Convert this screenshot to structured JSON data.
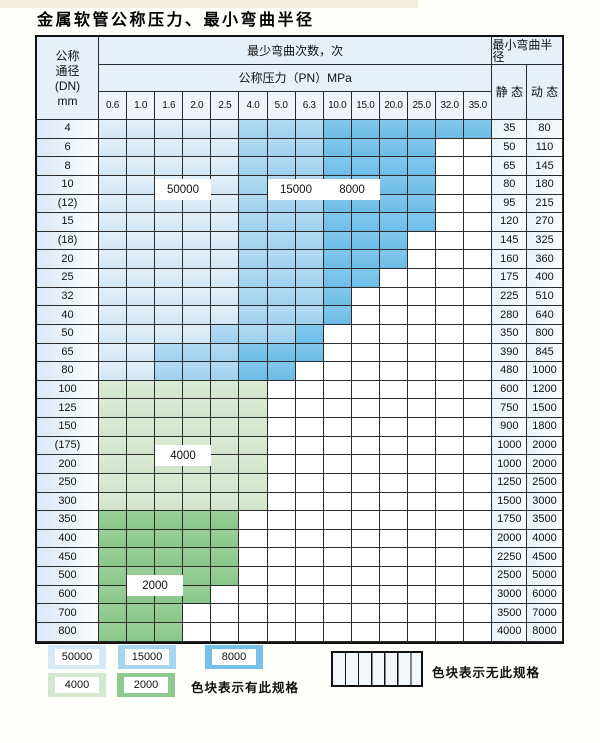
{
  "title": "金属软管公称压力、最小弯曲半径",
  "table": {
    "dn_header_lines": [
      "公称",
      "通径",
      "(DN)",
      "mm"
    ],
    "cycles_header": "最少弯曲次数，次",
    "pressure_header": "公称压力（PN）MPa",
    "radius_header": "最小弯曲半径",
    "static_header": "静 态",
    "dynamic_header": "动 态"
  },
  "chart_data": {
    "type": "heatmap",
    "title": "金属软管公称压力、最小弯曲半径",
    "x_label": "公称压力（PN）MPa",
    "x": [
      "0.6",
      "1.0",
      "1.6",
      "2.0",
      "2.5",
      "4.0",
      "5.0",
      "6.3",
      "10.0",
      "15.0",
      "20.0",
      "25.0",
      "32.0",
      "35.0"
    ],
    "y_label": "公称通径 (DN) mm",
    "value_label": "最少弯曲次数，次",
    "band_levels": {
      "b1": "50000",
      "b2": "15000",
      "b3": "8000",
      "g1": "4000",
      "g2": "2000",
      "x": "无此规格"
    },
    "level_colors": {
      "50000": "#d9ebf8",
      "15000": "#a8d6f1",
      "8000": "#74c0e8",
      "4000": "#d5e8cf",
      "2000": "#8fca90"
    },
    "radius_columns": [
      "静态",
      "动态"
    ],
    "rows": [
      {
        "dn": "4",
        "st": "35",
        "dy": "80",
        "bands": [
          [
            "b1",
            5
          ],
          [
            "b2",
            3
          ],
          [
            "b3",
            6
          ]
        ]
      },
      {
        "dn": "6",
        "st": "50",
        "dy": "110",
        "bands": [
          [
            "b1",
            5
          ],
          [
            "b2",
            3
          ],
          [
            "b3",
            4
          ],
          [
            "x",
            2
          ]
        ]
      },
      {
        "dn": "8",
        "st": "65",
        "dy": "145",
        "bands": [
          [
            "b1",
            5
          ],
          [
            "b2",
            3
          ],
          [
            "b3",
            4
          ],
          [
            "x",
            2
          ]
        ]
      },
      {
        "dn": "10",
        "st": "80",
        "dy": "180",
        "bands": [
          [
            "b1",
            5
          ],
          [
            "b2",
            3
          ],
          [
            "b3",
            4
          ],
          [
            "x",
            2
          ]
        ]
      },
      {
        "dn": "(12)",
        "st": "95",
        "dy": "215",
        "bands": [
          [
            "b1",
            5
          ],
          [
            "b2",
            3
          ],
          [
            "b3",
            4
          ],
          [
            "x",
            2
          ]
        ]
      },
      {
        "dn": "15",
        "st": "120",
        "dy": "270",
        "bands": [
          [
            "b1",
            5
          ],
          [
            "b2",
            3
          ],
          [
            "b3",
            4
          ],
          [
            "x",
            2
          ]
        ]
      },
      {
        "dn": "(18)",
        "st": "145",
        "dy": "325",
        "bands": [
          [
            "b1",
            5
          ],
          [
            "b2",
            3
          ],
          [
            "b3",
            3
          ],
          [
            "x",
            3
          ]
        ]
      },
      {
        "dn": "20",
        "st": "160",
        "dy": "360",
        "bands": [
          [
            "b1",
            5
          ],
          [
            "b2",
            3
          ],
          [
            "b3",
            3
          ],
          [
            "x",
            3
          ]
        ]
      },
      {
        "dn": "25",
        "st": "175",
        "dy": "400",
        "bands": [
          [
            "b1",
            5
          ],
          [
            "b2",
            3
          ],
          [
            "b3",
            2
          ],
          [
            "x",
            4
          ]
        ]
      },
      {
        "dn": "32",
        "st": "225",
        "dy": "510",
        "bands": [
          [
            "b1",
            5
          ],
          [
            "b2",
            3
          ],
          [
            "b3",
            1
          ],
          [
            "x",
            5
          ]
        ]
      },
      {
        "dn": "40",
        "st": "280",
        "dy": "640",
        "bands": [
          [
            "b1",
            5
          ],
          [
            "b2",
            3
          ],
          [
            "b3",
            1
          ],
          [
            "x",
            5
          ]
        ]
      },
      {
        "dn": "50",
        "st": "350",
        "dy": "800",
        "bands": [
          [
            "b1",
            4
          ],
          [
            "b2",
            3
          ],
          [
            "b3",
            1
          ],
          [
            "x",
            6
          ]
        ]
      },
      {
        "dn": "65",
        "st": "390",
        "dy": "845",
        "bands": [
          [
            "b1",
            2
          ],
          [
            "b2",
            3
          ],
          [
            "b3",
            3
          ],
          [
            "x",
            6
          ]
        ]
      },
      {
        "dn": "80",
        "st": "480",
        "dy": "1000",
        "bands": [
          [
            "b1",
            2
          ],
          [
            "b2",
            3
          ],
          [
            "b3",
            2
          ],
          [
            "x",
            7
          ]
        ]
      },
      {
        "dn": "100",
        "st": "600",
        "dy": "1200",
        "bands": [
          [
            "g1",
            6
          ],
          [
            "x",
            8
          ]
        ]
      },
      {
        "dn": "125",
        "st": "750",
        "dy": "1500",
        "bands": [
          [
            "g1",
            6
          ],
          [
            "x",
            8
          ]
        ]
      },
      {
        "dn": "150",
        "st": "900",
        "dy": "1800",
        "bands": [
          [
            "g1",
            6
          ],
          [
            "x",
            8
          ]
        ]
      },
      {
        "dn": "(175)",
        "st": "1000",
        "dy": "2000",
        "bands": [
          [
            "g1",
            6
          ],
          [
            "x",
            8
          ]
        ]
      },
      {
        "dn": "200",
        "st": "1000",
        "dy": "2000",
        "bands": [
          [
            "g1",
            6
          ],
          [
            "x",
            8
          ]
        ]
      },
      {
        "dn": "250",
        "st": "1250",
        "dy": "2500",
        "bands": [
          [
            "g1",
            6
          ],
          [
            "x",
            8
          ]
        ]
      },
      {
        "dn": "300",
        "st": "1500",
        "dy": "3000",
        "bands": [
          [
            "g1",
            6
          ],
          [
            "x",
            8
          ]
        ]
      },
      {
        "dn": "350",
        "st": "1750",
        "dy": "3500",
        "bands": [
          [
            "g2",
            5
          ],
          [
            "x",
            9
          ]
        ]
      },
      {
        "dn": "400",
        "st": "2000",
        "dy": "4000",
        "bands": [
          [
            "g2",
            5
          ],
          [
            "x",
            9
          ]
        ]
      },
      {
        "dn": "450",
        "st": "2250",
        "dy": "4500",
        "bands": [
          [
            "g2",
            5
          ],
          [
            "x",
            9
          ]
        ]
      },
      {
        "dn": "500",
        "st": "2500",
        "dy": "5000",
        "bands": [
          [
            "g2",
            5
          ],
          [
            "x",
            9
          ]
        ]
      },
      {
        "dn": "600",
        "st": "3000",
        "dy": "6000",
        "bands": [
          [
            "g2",
            4
          ],
          [
            "x",
            10
          ]
        ]
      },
      {
        "dn": "700",
        "st": "3500",
        "dy": "7000",
        "bands": [
          [
            "g2",
            3
          ],
          [
            "x",
            11
          ]
        ]
      },
      {
        "dn": "800",
        "st": "4000",
        "dy": "8000",
        "bands": [
          [
            "g2",
            3
          ],
          [
            "x",
            11
          ]
        ]
      }
    ]
  },
  "legend": {
    "items": [
      {
        "label": "50000",
        "band": "b1"
      },
      {
        "label": "15000",
        "band": "b2"
      },
      {
        "label": "8000",
        "band": "b3"
      },
      {
        "label": "4000",
        "band": "g1"
      },
      {
        "label": "2000",
        "band": "g2"
      }
    ],
    "present_text": "色块表示有此规格",
    "absent_text": "色块表示无此规格"
  }
}
